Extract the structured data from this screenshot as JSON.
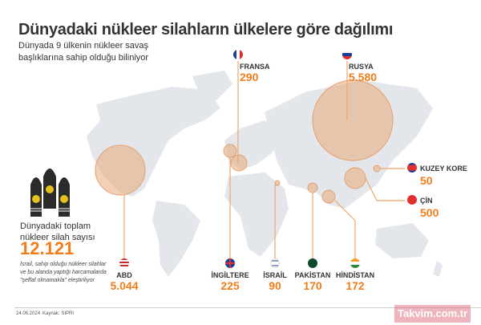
{
  "header": {
    "title": "Dünyadaki nükleer silahların ülkelere göre dağılımı",
    "subtitle": "Dünyada 9 ülkenin nükleer savaş başlıklarına sahip olduğu biliniyor"
  },
  "total": {
    "label": "Dünyadaki toplam nükleer silah sayısı",
    "value": "12.121"
  },
  "note": "İsrail, sahip olduğu nükleer silahlar ve bu alanda yaptığı harcamalarda \"şeffaf olmamakla\" eleştiriliyor",
  "countries": [
    {
      "name": "FRANSA",
      "value": "290"
    },
    {
      "name": "RUSYA",
      "value": "5.580"
    },
    {
      "name": "KUZEY KORE",
      "value": "50"
    },
    {
      "name": "ÇİN",
      "value": "500"
    },
    {
      "name": "ABD",
      "value": "5.044"
    },
    {
      "name": "İNGİLTERE",
      "value": "225"
    },
    {
      "name": "İSRAİL",
      "value": "90"
    },
    {
      "name": "PAKİSTAN",
      "value": "170"
    },
    {
      "name": "HİNDİSTAN",
      "value": "172"
    }
  ],
  "footer": {
    "date": "24.06.2024",
    "source": "Kaynak: SIPRI"
  },
  "watermark": "Takvim.com.tr",
  "colors": {
    "accent": "#f07d1a",
    "bubble": "#e8aa78",
    "land": "#e3e6ea"
  }
}
